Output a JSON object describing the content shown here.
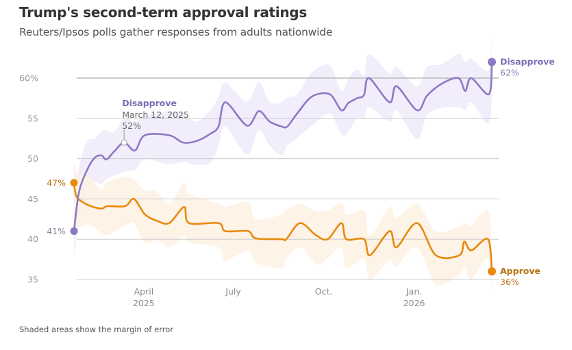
{
  "header": {
    "title": "Trump's second-term approval ratings",
    "subtitle": "Reuters/Ipsos polls gather responses from adults nationwide"
  },
  "footnote": "Shaded areas show the margin of error",
  "colors": {
    "disapprove": "#8C79C4",
    "disapprove_band": "#EFEAFA",
    "approve": "#E8890C",
    "approve_band": "#FDF1E3",
    "approve_label": "#B8740F",
    "grid": "#cccccc",
    "grid_top": "#bbbbbb"
  },
  "chart_data": {
    "type": "line",
    "title": "Trump's second-term approval ratings",
    "subtitle": "Reuters/Ipsos polls gather responses from adults nationwide",
    "xlabel": "",
    "ylabel": "",
    "ylim": [
      35,
      60
    ],
    "xlim": [
      "2025-01-20",
      "2026-03-21"
    ],
    "grid": true,
    "y_ticks": [
      {
        "value": 60,
        "label": "60%"
      },
      {
        "value": 55,
        "label": "55"
      },
      {
        "value": 50,
        "label": "50"
      },
      {
        "value": 45,
        "label": "45"
      },
      {
        "value": 40,
        "label": "40"
      },
      {
        "value": 35,
        "label": "35"
      }
    ],
    "x_ticks": [
      {
        "date": "2025-04-01",
        "label": "April",
        "sublabel": "2025"
      },
      {
        "date": "2025-07-01",
        "label": "July",
        "sublabel": ""
      },
      {
        "date": "2025-10-01",
        "label": "Oct.",
        "sublabel": ""
      },
      {
        "date": "2026-01-01",
        "label": "Jan.",
        "sublabel": "2026"
      }
    ],
    "margin_of_error": 3,
    "series": [
      {
        "name": "Disapprove",
        "key": "disapprove",
        "start_label": "41%",
        "end_label": "62%",
        "points": [
          [
            "2025-01-20",
            41
          ],
          [
            "2025-01-25",
            45.8
          ],
          [
            "2025-02-02",
            48.5
          ],
          [
            "2025-02-10",
            50.1
          ],
          [
            "2025-02-17",
            50.4
          ],
          [
            "2025-02-22",
            49.9
          ],
          [
            "2025-03-02",
            50.9
          ],
          [
            "2025-03-12",
            52
          ],
          [
            "2025-03-23",
            51
          ],
          [
            "2025-04-02",
            52.9
          ],
          [
            "2025-04-27",
            52.9
          ],
          [
            "2025-05-11",
            52
          ],
          [
            "2025-05-25",
            52.2
          ],
          [
            "2025-06-08",
            53.1
          ],
          [
            "2025-06-16",
            54
          ],
          [
            "2025-06-23",
            57
          ],
          [
            "2025-07-15",
            54.1
          ],
          [
            "2025-07-27",
            55.9
          ],
          [
            "2025-08-07",
            54.6
          ],
          [
            "2025-08-19",
            54
          ],
          [
            "2025-08-25",
            54
          ],
          [
            "2025-09-04",
            55.6
          ],
          [
            "2025-09-19",
            57.7
          ],
          [
            "2025-10-07",
            58
          ],
          [
            "2025-10-19",
            56
          ],
          [
            "2025-10-26",
            56.9
          ],
          [
            "2025-11-04",
            57.5
          ],
          [
            "2025-11-11",
            57.9
          ],
          [
            "2025-11-16",
            60
          ],
          [
            "2025-12-07",
            57
          ],
          [
            "2025-12-14",
            59
          ],
          [
            "2026-01-04",
            56
          ],
          [
            "2026-01-14",
            57.8
          ],
          [
            "2026-01-29",
            59.3
          ],
          [
            "2026-02-15",
            60
          ],
          [
            "2026-02-22",
            58.4
          ],
          [
            "2026-02-28",
            60
          ],
          [
            "2026-03-18",
            58
          ],
          [
            "2026-03-21",
            62
          ]
        ]
      },
      {
        "name": "Approve",
        "key": "approve",
        "start_label": "47%",
        "end_label": "36%",
        "points": [
          [
            "2025-01-20",
            47
          ],
          [
            "2025-01-23",
            45.2
          ],
          [
            "2025-02-04",
            44.2
          ],
          [
            "2025-02-17",
            43.8
          ],
          [
            "2025-02-23",
            44.1
          ],
          [
            "2025-03-13",
            44.1
          ],
          [
            "2025-03-22",
            45
          ],
          [
            "2025-04-02",
            43.1
          ],
          [
            "2025-04-14",
            42.3
          ],
          [
            "2025-04-27",
            42
          ],
          [
            "2025-05-12",
            44
          ],
          [
            "2025-05-17",
            42
          ],
          [
            "2025-06-16",
            42
          ],
          [
            "2025-06-23",
            41
          ],
          [
            "2025-07-16",
            41
          ],
          [
            "2025-07-24",
            40.1
          ],
          [
            "2025-08-19",
            40
          ],
          [
            "2025-08-24",
            40
          ],
          [
            "2025-09-07",
            42
          ],
          [
            "2025-09-23",
            40.5
          ],
          [
            "2025-10-05",
            40
          ],
          [
            "2025-10-19",
            42
          ],
          [
            "2025-10-24",
            40
          ],
          [
            "2025-11-11",
            40
          ],
          [
            "2025-11-17",
            38
          ],
          [
            "2025-12-07",
            41
          ],
          [
            "2025-12-14",
            39
          ],
          [
            "2026-01-04",
            42
          ],
          [
            "2026-01-23",
            38
          ],
          [
            "2026-02-16",
            38
          ],
          [
            "2026-02-21",
            39.7
          ],
          [
            "2026-02-28",
            38.6
          ],
          [
            "2026-03-17",
            40
          ],
          [
            "2026-03-21",
            36
          ]
        ]
      }
    ],
    "annotations": [
      {
        "series": "Disapprove",
        "date": "2025-03-12",
        "value": 52,
        "title": "Disapprove",
        "date_label": "March 12, 2025",
        "value_label": "52%"
      }
    ],
    "legend": "inline-end-labels"
  }
}
